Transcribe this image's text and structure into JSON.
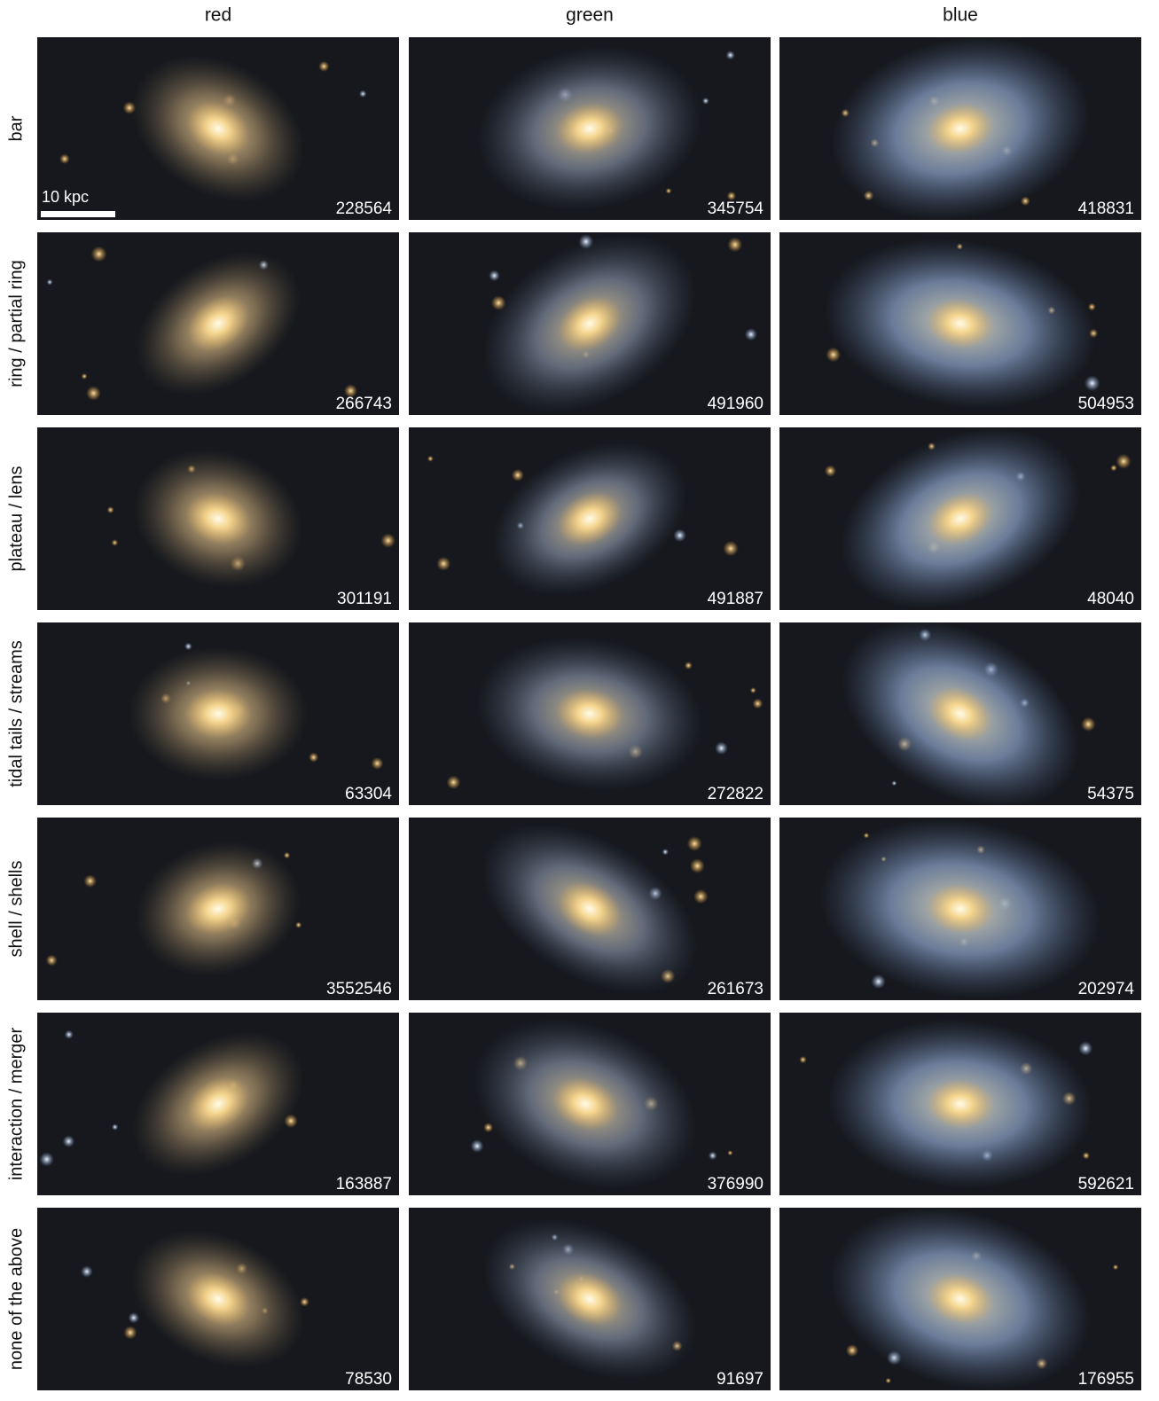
{
  "columns": [
    "red",
    "green",
    "blue"
  ],
  "scale_bar": "10 kpc",
  "rows": [
    {
      "label": "bar",
      "ids": [
        "228564",
        "345754",
        "418831"
      ]
    },
    {
      "label": "ring / partial ring",
      "ids": [
        "266743",
        "491960",
        "504953"
      ]
    },
    {
      "label": "plateau / lens",
      "ids": [
        "301191",
        "491887",
        "48040"
      ]
    },
    {
      "label": "tidal tails / streams",
      "ids": [
        "63304",
        "272822",
        "54375"
      ]
    },
    {
      "label": "shell / shells",
      "ids": [
        "3552546",
        "261673",
        "202974"
      ]
    },
    {
      "label": "interaction / merger",
      "ids": [
        "163887",
        "376990",
        "592621"
      ]
    },
    {
      "label": "none of the above",
      "ids": [
        "78530",
        "91697",
        "176955"
      ]
    }
  ]
}
